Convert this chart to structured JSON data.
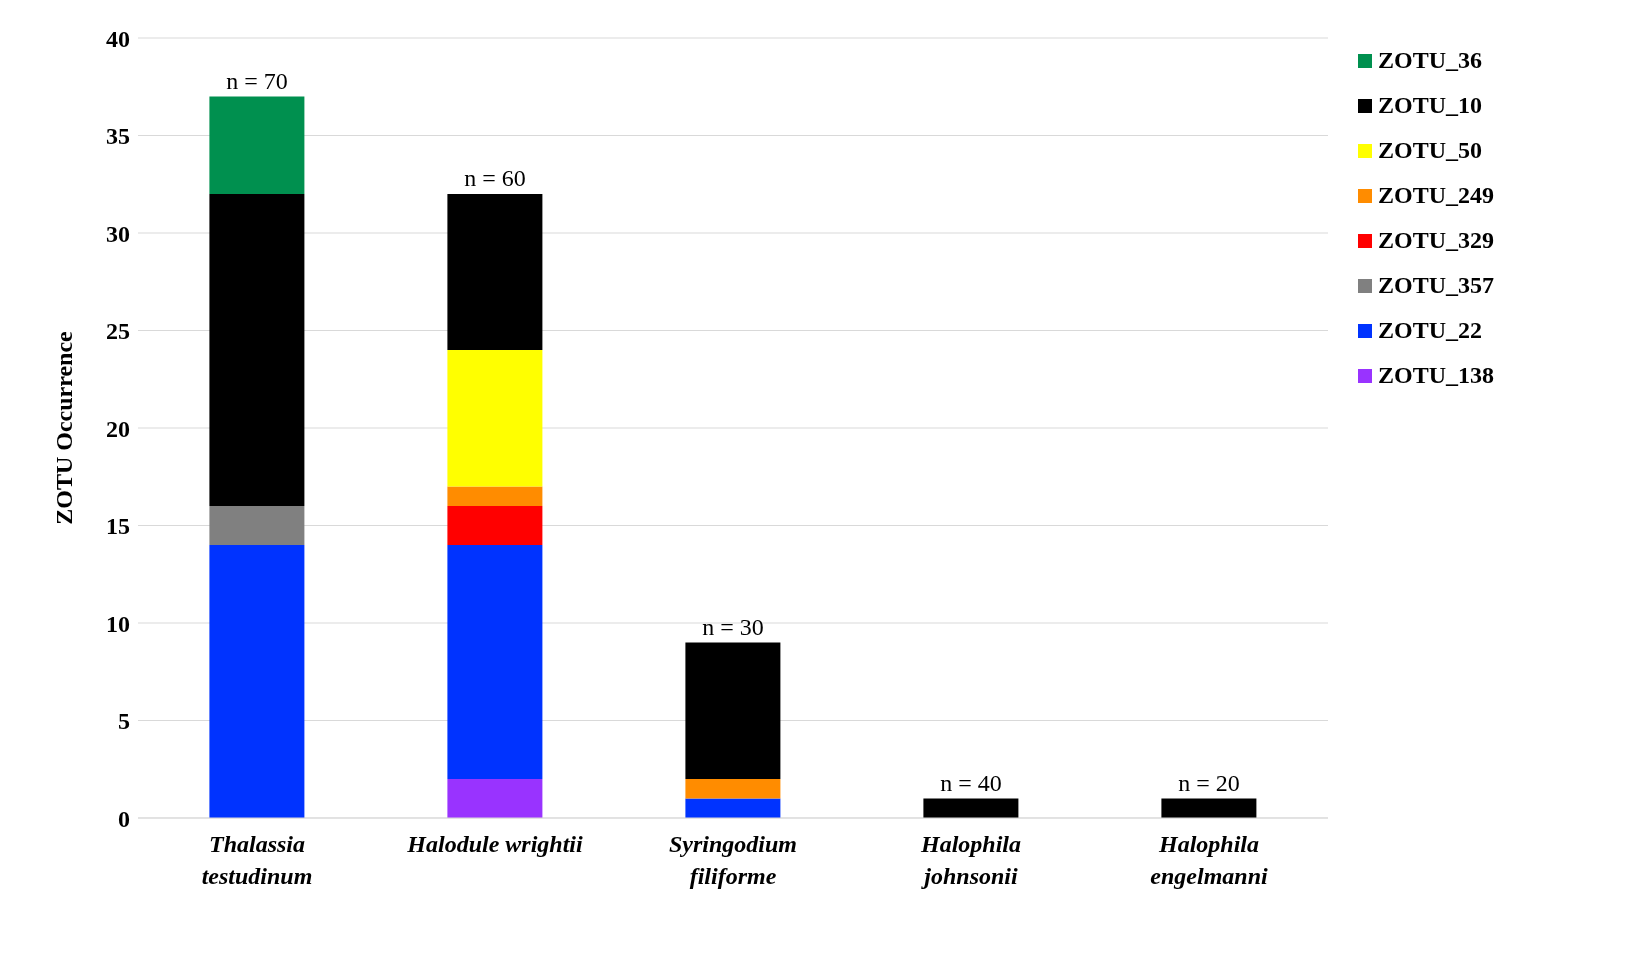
{
  "chart_data": {
    "type": "bar",
    "stacked": true,
    "ylabel": "ZOTU Occurrence",
    "categories": [
      "Thalassia testudinum",
      "Halodule wrightii",
      "Syringodium filiforme",
      "Halophila johnsonii",
      "Halophila engelmanni"
    ],
    "series": [
      {
        "name": "ZOTU_138",
        "color": "#9933ff",
        "values": [
          0,
          2,
          0,
          0,
          0
        ]
      },
      {
        "name": "ZOTU_22",
        "color": "#0033ff",
        "values": [
          14,
          12,
          1,
          0,
          0
        ]
      },
      {
        "name": "ZOTU_357",
        "color": "#808080",
        "values": [
          2,
          0,
          0,
          0,
          0
        ]
      },
      {
        "name": "ZOTU_329",
        "color": "#ff0000",
        "values": [
          0,
          2,
          0,
          0,
          0
        ]
      },
      {
        "name": "ZOTU_249",
        "color": "#ff8c00",
        "values": [
          0,
          1,
          1,
          0,
          0
        ]
      },
      {
        "name": "ZOTU_50",
        "color": "#ffff00",
        "values": [
          0,
          7,
          0,
          0,
          0
        ]
      },
      {
        "name": "ZOTU_10",
        "color": "#000000",
        "values": [
          16,
          8,
          7,
          1,
          1
        ]
      },
      {
        "name": "ZOTU_36",
        "color": "#00904f",
        "values": [
          5,
          0,
          0,
          0,
          0
        ]
      }
    ],
    "ylim": [
      0,
      40
    ],
    "yticks": [
      0,
      5,
      10,
      15,
      20,
      25,
      30,
      35,
      40
    ],
    "grid": "y",
    "legend": "top right",
    "annotations": [
      {
        "text": "n = 70",
        "x": "Thalassia testudinum",
        "y": 37
      },
      {
        "text": "n = 60",
        "x": "Halodule wrightii",
        "y": 32
      },
      {
        "text": "n = 30",
        "x": "Syringodium filiforme",
        "y": 9
      },
      {
        "text": "n = 40",
        "x": "Halophila johnsonii",
        "y": 1
      },
      {
        "text": "n = 20",
        "x": "Halophila engelmanni",
        "y": 1
      }
    ]
  }
}
